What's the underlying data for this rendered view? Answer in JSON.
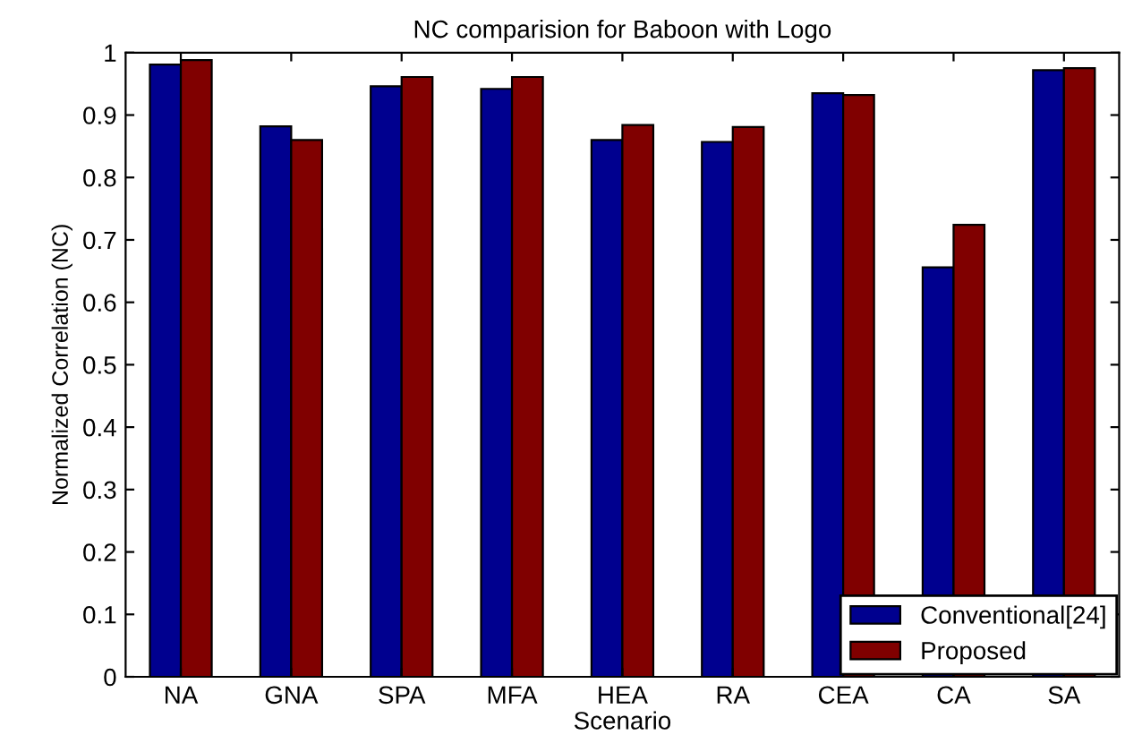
{
  "chart_data": {
    "type": "bar",
    "title": "NC comparision for Baboon with Logo",
    "xlabel": "Scenario",
    "ylabel": "Normalized Correlation (NC)",
    "categories": [
      "NA",
      "GNA",
      "SPA",
      "MFA",
      "HEA",
      "RA",
      "CEA",
      "CA",
      "SA"
    ],
    "series": [
      {
        "name": "Conventional[24]",
        "color": "#00008f",
        "values": [
          0.981,
          0.882,
          0.946,
          0.942,
          0.86,
          0.857,
          0.935,
          0.656,
          0.972
        ]
      },
      {
        "name": "Proposed",
        "color": "#800000",
        "values": [
          0.988,
          0.86,
          0.961,
          0.961,
          0.884,
          0.881,
          0.932,
          0.724,
          0.975
        ]
      }
    ],
    "ylim": [
      0,
      1
    ],
    "yticks": [
      0,
      0.1,
      0.2,
      0.3,
      0.4,
      0.5,
      0.6,
      0.7,
      0.8,
      0.9,
      1
    ],
    "grid": false,
    "legend": "bottom right"
  }
}
